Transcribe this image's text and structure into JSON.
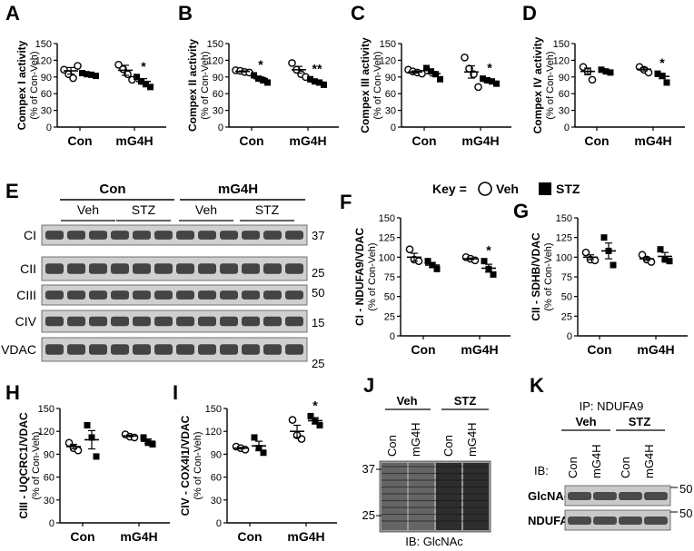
{
  "panel_letters": {
    "A": "A",
    "B": "B",
    "C": "C",
    "D": "D",
    "E": "E",
    "F": "F",
    "G": "G",
    "H": "H",
    "I": "I",
    "J": "J",
    "K": "K"
  },
  "groups": [
    "Con",
    "mG4H"
  ],
  "key": {
    "label": "Key =",
    "veh": "Veh",
    "stz": "STZ"
  },
  "chart_data": [
    {
      "id": "A",
      "type": "scatter",
      "ylabel": "Compex I activity",
      "ylabel2": "(% of Con-Veh)",
      "ylim": [
        0,
        150
      ],
      "yticks": [
        0,
        30,
        60,
        90,
        120,
        150
      ],
      "categories": [
        "Con",
        "mG4H"
      ],
      "series": [
        {
          "name": "Veh",
          "points": [
            [
              103,
              95,
              88,
              110
            ],
            [
              112,
              104,
              95,
              85
            ]
          ],
          "mean": [
            101,
            102
          ],
          "sem": [
            6,
            9
          ]
        },
        {
          "name": "STZ",
          "points": [
            [
              97,
              95,
              94,
              92
            ],
            [
              90,
              82,
              77,
              72
            ]
          ],
          "mean": [
            95,
            82
          ],
          "sem": [
            2,
            5
          ]
        }
      ],
      "sig": [
        "",
        "*"
      ]
    },
    {
      "id": "B",
      "type": "scatter",
      "ylabel": "Compex II activity",
      "ylabel2": "(% of Con-Veh)",
      "ylim": [
        0,
        150
      ],
      "yticks": [
        0,
        30,
        60,
        90,
        120,
        150
      ],
      "categories": [
        "Con",
        "mG4H"
      ],
      "series": [
        {
          "name": "Veh",
          "points": [
            [
              102,
              101,
              99,
              98
            ],
            [
              115,
              103,
              95,
              90
            ]
          ],
          "mean": [
            100,
            103
          ],
          "sem": [
            1,
            6
          ]
        },
        {
          "name": "STZ",
          "points": [
            [
              93,
              87,
              84,
              80
            ],
            [
              86,
              82,
              80,
              76
            ]
          ],
          "mean": [
            87,
            81
          ],
          "sem": [
            3,
            2
          ]
        }
      ],
      "sig": [
        "*",
        "**"
      ]
    },
    {
      "id": "C",
      "type": "scatter",
      "ylabel": "Compex III activity",
      "ylabel2": "(% of Con-Veh)",
      "ylim": [
        0,
        150
      ],
      "yticks": [
        0,
        30,
        60,
        90,
        120,
        150
      ],
      "categories": [
        "Con",
        "mG4H"
      ],
      "series": [
        {
          "name": "Veh",
          "points": [
            [
              103,
              100,
              98,
              96
            ],
            [
              125,
              105,
              95,
              72
            ]
          ],
          "mean": [
            99,
            99
          ],
          "sem": [
            2,
            11
          ]
        },
        {
          "name": "STZ",
          "points": [
            [
              106,
              100,
              95,
              86
            ],
            [
              87,
              84,
              82,
              78
            ]
          ],
          "mean": [
            96,
            82
          ],
          "sem": [
            4,
            2
          ]
        }
      ],
      "sig": [
        "",
        "*"
      ]
    },
    {
      "id": "D",
      "type": "scatter",
      "ylabel": "Compex IV activity",
      "ylabel2": "(% of Con-Veh)",
      "ylim": [
        0,
        150
      ],
      "yticks": [
        0,
        30,
        60,
        90,
        120,
        150
      ],
      "categories": [
        "Con",
        "mG4H"
      ],
      "series": [
        {
          "name": "Veh",
          "points": [
            [
              108,
              100,
              85
            ],
            [
              108,
              103,
              98
            ]
          ],
          "mean": [
            100,
            104
          ],
          "sem": [
            6,
            3
          ]
        },
        {
          "name": "STZ",
          "points": [
            [
              103,
              100,
              98
            ],
            [
              96,
              92,
              80
            ]
          ],
          "mean": [
            100,
            91
          ],
          "sem": [
            1,
            4
          ]
        }
      ],
      "sig": [
        "",
        "*"
      ]
    },
    {
      "id": "F",
      "type": "scatter",
      "ylabel": "CI - NDUFA9/VDAC",
      "ylabel2": "(% of Con-Veh)",
      "ylim": [
        0,
        150
      ],
      "yticks": [
        0,
        25,
        50,
        75,
        100,
        125,
        150
      ],
      "categories": [
        "Con",
        "mG4H"
      ],
      "series": [
        {
          "name": "Veh",
          "points": [
            [
              110,
              97,
              95
            ],
            [
              100,
              98,
              96
            ]
          ],
          "mean": [
            100,
            98
          ],
          "sem": [
            5,
            1
          ]
        },
        {
          "name": "STZ",
          "points": [
            [
              95,
              90,
              85
            ],
            [
              95,
              85,
              78
            ]
          ],
          "mean": [
            90,
            86
          ],
          "sem": [
            3,
            5
          ]
        }
      ],
      "sig": [
        "",
        "*"
      ]
    },
    {
      "id": "G",
      "type": "scatter",
      "ylabel": "CII - SDHB/VDAC",
      "ylabel2": "(% of Con-Veh)",
      "ylim": [
        0,
        150
      ],
      "yticks": [
        0,
        25,
        50,
        75,
        100,
        125,
        150
      ],
      "categories": [
        "Con",
        "mG4H"
      ],
      "series": [
        {
          "name": "Veh",
          "points": [
            [
              106,
              97,
              96
            ],
            [
              103,
              97,
              94
            ]
          ],
          "mean": [
            100,
            98
          ],
          "sem": [
            3,
            2
          ]
        },
        {
          "name": "STZ",
          "points": [
            [
              125,
              108,
              90
            ],
            [
              110,
              97,
              95
            ]
          ],
          "mean": [
            108,
            101
          ],
          "sem": [
            10,
            5
          ]
        }
      ],
      "sig": [
        "",
        ""
      ]
    },
    {
      "id": "H",
      "type": "scatter",
      "ylabel": "CIII - UQCRC1/VDAC",
      "ylabel2": "(% of Con-Veh)",
      "ylim": [
        0,
        150
      ],
      "yticks": [
        0,
        30,
        60,
        90,
        120,
        150
      ],
      "categories": [
        "Con",
        "mG4H"
      ],
      "series": [
        {
          "name": "Veh",
          "points": [
            [
              105,
              98,
              95
            ],
            [
              116,
              113,
              112
            ]
          ],
          "mean": [
            100,
            114
          ],
          "sem": [
            3,
            1
          ]
        },
        {
          "name": "STZ",
          "points": [
            [
              128,
              112,
              87
            ],
            [
              112,
              105,
              103
            ]
          ],
          "mean": [
            109,
            107
          ],
          "sem": [
            12,
            3
          ]
        }
      ],
      "sig": [
        "",
        ""
      ]
    },
    {
      "id": "I",
      "type": "scatter",
      "ylabel": "CIV - COX4I1/VDAC",
      "ylabel2": "(% of Con-Veh)",
      "ylim": [
        0,
        150
      ],
      "yticks": [
        0,
        30,
        60,
        90,
        120,
        150
      ],
      "categories": [
        "Con",
        "mG4H"
      ],
      "series": [
        {
          "name": "Veh",
          "points": [
            [
              100,
              98,
              96
            ],
            [
              135,
              115,
              110
            ]
          ],
          "mean": [
            98,
            120
          ],
          "sem": [
            1,
            8
          ]
        },
        {
          "name": "STZ",
          "points": [
            [
              112,
              98,
              92
            ],
            [
              140,
              133,
              128
            ]
          ],
          "mean": [
            101,
            134
          ],
          "sem": [
            6,
            4
          ]
        }
      ],
      "sig": [
        "",
        "*"
      ]
    }
  ],
  "blotE": {
    "top_groups": [
      "Con",
      "mG4H"
    ],
    "sub_groups": [
      "Veh",
      "STZ",
      "Veh",
      "STZ"
    ],
    "rows": [
      "CI",
      "CII",
      "CIII",
      "CIV",
      "VDAC"
    ],
    "mw": [
      "37",
      "25",
      "50",
      "15",
      "25"
    ]
  },
  "blotJ": {
    "groups": [
      "Veh",
      "STZ"
    ],
    "lanes": [
      "Con",
      "mG4H",
      "Con",
      "mG4H"
    ],
    "mw": [
      "37",
      "25"
    ],
    "caption": "IB: GlcNAc"
  },
  "blotK": {
    "title": "IP: NDUFA9",
    "groups": [
      "Veh",
      "STZ"
    ],
    "ib": "IB:",
    "lanes": [
      "Con",
      "mG4H",
      "Con",
      "mG4H"
    ],
    "rows": [
      "GlcNAc",
      "NDUFA9"
    ],
    "mw": [
      "50",
      "50"
    ]
  }
}
